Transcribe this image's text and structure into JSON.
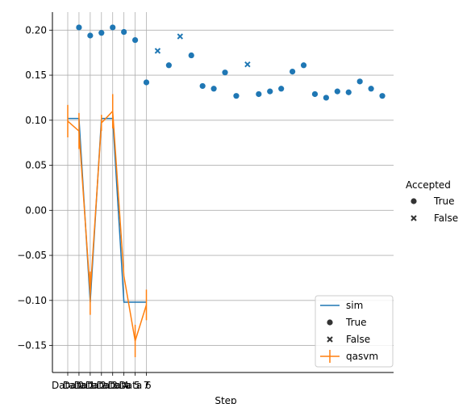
{
  "chart_data": {
    "type": "scatter",
    "title": "",
    "xlabel": "Step",
    "ylabel": "",
    "ylim": [
      -0.18,
      0.22
    ],
    "grid": true,
    "y_ticks": [
      -0.15,
      -0.1,
      -0.05,
      0.0,
      0.05,
      0.1,
      0.15,
      0.2
    ],
    "y_tick_labels": [
      "−0.15",
      "−0.10",
      "−0.05",
      "0.00",
      "0.05",
      "0.10",
      "0.15",
      "0.20"
    ],
    "x_tick_labels": [
      "Data 0",
      "Data 1",
      "Data 2",
      "Data 3",
      "Data 4",
      "Data 5",
      "Data 6",
      "7"
    ],
    "series": [
      {
        "name": "sim",
        "kind": "line",
        "color": "#1f77b4",
        "x": [
          0,
          1,
          2,
          3,
          4,
          5,
          6,
          7
        ],
        "values": [
          0.102,
          0.102,
          -0.102,
          0.102,
          0.102,
          -0.102,
          -0.102,
          -0.102
        ]
      },
      {
        "name": "qasvm",
        "kind": "line-errorbar",
        "color": "#ff7f0e",
        "x": [
          0,
          1,
          2,
          3,
          4,
          5,
          6,
          7
        ],
        "values": [
          0.099,
          0.088,
          -0.092,
          0.097,
          0.11,
          -0.073,
          -0.145,
          -0.105
        ],
        "errors": [
          0.018,
          0.02,
          0.024,
          0.009,
          0.019,
          0.0,
          0.018,
          0.017
        ]
      }
    ],
    "scatter": {
      "hue_title": "Accepted",
      "color": "#1f77b4",
      "points": [
        {
          "x": 1,
          "y": 0.203,
          "accepted": true
        },
        {
          "x": 2,
          "y": 0.194,
          "accepted": true
        },
        {
          "x": 3,
          "y": 0.197,
          "accepted": true
        },
        {
          "x": 4,
          "y": 0.203,
          "accepted": true
        },
        {
          "x": 5,
          "y": 0.198,
          "accepted": true
        },
        {
          "x": 6,
          "y": 0.189,
          "accepted": true
        },
        {
          "x": 7,
          "y": 0.142,
          "accepted": true
        },
        {
          "x": 8,
          "y": 0.177,
          "accepted": false
        },
        {
          "x": 9,
          "y": 0.161,
          "accepted": true
        },
        {
          "x": 10,
          "y": 0.193,
          "accepted": false
        },
        {
          "x": 11,
          "y": 0.172,
          "accepted": true
        },
        {
          "x": 12,
          "y": 0.138,
          "accepted": true
        },
        {
          "x": 13,
          "y": 0.135,
          "accepted": true
        },
        {
          "x": 14,
          "y": 0.153,
          "accepted": true
        },
        {
          "x": 15,
          "y": 0.127,
          "accepted": true
        },
        {
          "x": 16,
          "y": 0.162,
          "accepted": false
        },
        {
          "x": 17,
          "y": 0.129,
          "accepted": true
        },
        {
          "x": 18,
          "y": 0.132,
          "accepted": true
        },
        {
          "x": 19,
          "y": 0.135,
          "accepted": true
        },
        {
          "x": 20,
          "y": 0.154,
          "accepted": true
        },
        {
          "x": 21,
          "y": 0.161,
          "accepted": true
        },
        {
          "x": 22,
          "y": 0.129,
          "accepted": true
        },
        {
          "x": 23,
          "y": 0.125,
          "accepted": true
        },
        {
          "x": 24,
          "y": 0.132,
          "accepted": true
        },
        {
          "x": 25,
          "y": 0.131,
          "accepted": true
        },
        {
          "x": 26,
          "y": 0.143,
          "accepted": true
        },
        {
          "x": 27,
          "y": 0.135,
          "accepted": true
        },
        {
          "x": 28,
          "y": 0.127,
          "accepted": true
        }
      ]
    },
    "legend_inner": {
      "placement": "lower-right",
      "entries": [
        {
          "label": "sim",
          "marker": "line",
          "color": "#1f77b4"
        },
        {
          "label": "True",
          "marker": "dot",
          "color": "#333333"
        },
        {
          "label": "False",
          "marker": "cross",
          "color": "#333333"
        },
        {
          "label": "qasvm",
          "marker": "errorline",
          "color": "#ff7f0e"
        }
      ]
    },
    "legend_outer": {
      "placement": "right",
      "title": "Accepted",
      "entries": [
        {
          "label": "True",
          "marker": "dot"
        },
        {
          "label": "False",
          "marker": "cross"
        }
      ]
    }
  }
}
